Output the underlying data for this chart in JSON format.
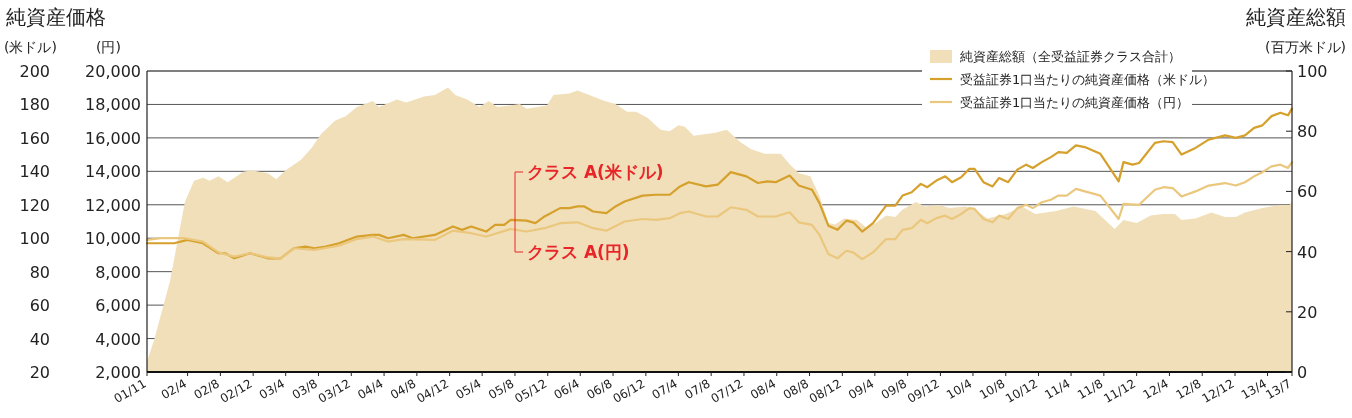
{
  "chart_data": {
    "type": "line",
    "title": "純資産価格",
    "subtitle": "純資産総額",
    "ylabel": "(米ドル)",
    "y3label": "(円)",
    "y2label": "(百万米ドル)",
    "xlim": [
      "2001-11",
      "2013-07"
    ],
    "xticks": [
      {
        "value": "2001-11",
        "label": "01/11"
      },
      {
        "value": "2002-04",
        "label": "02/4"
      },
      {
        "value": "2002-08",
        "label": "02/8"
      },
      {
        "value": "2002-12",
        "label": "02/12"
      },
      {
        "value": "2003-04",
        "label": "03/4"
      },
      {
        "value": "2003-08",
        "label": "03/8"
      },
      {
        "value": "2003-12",
        "label": "03/12"
      },
      {
        "value": "2004-04",
        "label": "04/4"
      },
      {
        "value": "2004-08",
        "label": "04/8"
      },
      {
        "value": "2004-12",
        "label": "04/12"
      },
      {
        "value": "2005-04",
        "label": "05/4"
      },
      {
        "value": "2005-08",
        "label": "05/8"
      },
      {
        "value": "2005-12",
        "label": "05/12"
      },
      {
        "value": "2006-04",
        "label": "06/4"
      },
      {
        "value": "2006-08",
        "label": "06/8"
      },
      {
        "value": "2006-12",
        "label": "06/12"
      },
      {
        "value": "2007-04",
        "label": "07/4"
      },
      {
        "value": "2007-08",
        "label": "07/8"
      },
      {
        "value": "2007-12",
        "label": "07/12"
      },
      {
        "value": "2008-04",
        "label": "08/4"
      },
      {
        "value": "2008-08",
        "label": "08/8"
      },
      {
        "value": "2008-12",
        "label": "08/12"
      },
      {
        "value": "2009-04",
        "label": "09/4"
      },
      {
        "value": "2009-08",
        "label": "09/8"
      },
      {
        "value": "2009-12",
        "label": "09/12"
      },
      {
        "value": "2010-04",
        "label": "10/4"
      },
      {
        "value": "2010-08",
        "label": "10/8"
      },
      {
        "value": "2010-12",
        "label": "10/12"
      },
      {
        "value": "2011-04",
        "label": "11/4"
      },
      {
        "value": "2011-08",
        "label": "11/8"
      },
      {
        "value": "2011-12",
        "label": "11/12"
      },
      {
        "value": "2012-04",
        "label": "12/4"
      },
      {
        "value": "2012-08",
        "label": "12/8"
      },
      {
        "value": "2012-12",
        "label": "12/12"
      },
      {
        "value": "2013-04",
        "label": "13/4"
      },
      {
        "value": "2013-07",
        "label": "13/7"
      }
    ],
    "ylim": [
      20,
      200
    ],
    "yticks": [
      20,
      40,
      60,
      80,
      100,
      120,
      140,
      160,
      180,
      200
    ],
    "y3lim": [
      2000,
      20000
    ],
    "y3ticks": [
      {
        "value": 2000,
        "label": "2,000"
      },
      {
        "value": 4000,
        "label": "4,000"
      },
      {
        "value": 6000,
        "label": "6,000"
      },
      {
        "value": 8000,
        "label": "8,000"
      },
      {
        "value": 10000,
        "label": "10,000"
      },
      {
        "value": 12000,
        "label": "12,000"
      },
      {
        "value": 14000,
        "label": "14,000"
      },
      {
        "value": 16000,
        "label": "16,000"
      },
      {
        "value": 18000,
        "label": "18,000"
      },
      {
        "value": 20000,
        "label": "20,000"
      }
    ],
    "y2lim": [
      0,
      100
    ],
    "y2ticks": [
      0,
      20,
      40,
      60,
      80,
      100
    ],
    "grid": "y",
    "legend": "top right",
    "series": [
      {
        "name": "純資産総額（全受益証券クラス合計）",
        "type": "area",
        "axis": "y2",
        "color": "#f1dfb9",
        "x": [
          "2001-11",
          "2001-11-28",
          "2002-01-25",
          "2002-02-28",
          "2002-03-22",
          "2002-04-25",
          "2002-05-28",
          "2002-06-22",
          "2002-07-25",
          "2002-08-28",
          "2002-09-22",
          "2002-10-25",
          "2002-11-28",
          "2003-01-25",
          "2003-02-25",
          "2003-04-01",
          "2003-05-28",
          "2003-07-07",
          "2003-08-10",
          "2003-10-01",
          "2003-11-10",
          "2003-12-22",
          "2004-02-19",
          "2004-03-13",
          "2004-05-19",
          "2004-06-22",
          "2004-08-28",
          "2004-10-07",
          "2004-11-25",
          "2004-12-22",
          "2005-02-04",
          "2005-03-22",
          "2005-04-25",
          "2005-05-28",
          "2005-08-19",
          "2005-09-13",
          "2005-11-28",
          "2005-12-22",
          "2006-02-19",
          "2006-03-22",
          "2006-05-04",
          "2006-07-01",
          "2006-08-10",
          "2006-09-22",
          "2006-10-25",
          "2006-12-07",
          "2007-01-25",
          "2007-02-28",
          "2007-04-01",
          "2007-04-25",
          "2007-05-28",
          "2007-08-16",
          "2007-09-28",
          "2007-11-16",
          "2007-12-28",
          "2008-02-16",
          "2008-04-16",
          "2008-05-19",
          "2008-06-22",
          "2008-08-04",
          "2008-09-07",
          "2008-10-10",
          "2008-11-04",
          "2008-12-07",
          "2009-01-25",
          "2009-02-28",
          "2009-04-04",
          "2009-05-13",
          "2009-06-16",
          "2009-07-13",
          "2009-09-01",
          "2009-10-04",
          "2009-11-25",
          "2010-01-04",
          "2010-03-04",
          "2010-04-07",
          "2010-05-25",
          "2010-08-01",
          "2010-10-01",
          "2010-11-19",
          "2011-02-04",
          "2011-04-10",
          "2011-07-01",
          "2011-09-10",
          "2011-10-13",
          "2011-12-01",
          "2012-01-22",
          "2012-03-10",
          "2012-04-22",
          "2012-05-16",
          "2012-07-07",
          "2012-09-04",
          "2012-10-25",
          "2012-12-04",
          "2013-01-07",
          "2013-03-13",
          "2013-05-19",
          "2013-06-22",
          "2013-07"
        ],
        "values": [
          3.5,
          10.8,
          30,
          46,
          56.5,
          63.5,
          64.5,
          63.5,
          65,
          63,
          64.5,
          66.5,
          67,
          66,
          64,
          67,
          70.5,
          74.5,
          79,
          83.5,
          85,
          88,
          90,
          88,
          90.5,
          89.5,
          91.5,
          92,
          94.5,
          92,
          90.5,
          88,
          90,
          88,
          89,
          87.5,
          88.5,
          92,
          92.5,
          93.5,
          92,
          90,
          89,
          86.5,
          86.5,
          84.5,
          80.5,
          80,
          82,
          81.5,
          78.5,
          79.5,
          80.5,
          76.5,
          74,
          72.5,
          72.5,
          69,
          66,
          65,
          58.5,
          49.5,
          49,
          51,
          50.5,
          48,
          49.5,
          52,
          51.5,
          54,
          56.5,
          55,
          55.5,
          54.5,
          55,
          54,
          51,
          52.5,
          55,
          52.5,
          53.5,
          55,
          53.5,
          47.5,
          50.5,
          49.5,
          52,
          52.5,
          52.5,
          50.5,
          51,
          53,
          51.5,
          51.5,
          53,
          54.5,
          55.5,
          55.5,
          57
        ]
      },
      {
        "name": "受益証券1口当たりの純資産価格（米ドル）",
        "type": "line",
        "axis": "y",
        "color": "#d5a02b",
        "x": [
          "2001-11",
          "2002-02-10",
          "2002-04",
          "2002-05-28",
          "2002-07-25",
          "2002-08-19",
          "2002-09-22",
          "2002-11-19",
          "2003-01-25",
          "2003-03-13",
          "2003-05",
          "2003-06-13",
          "2003-07-16",
          "2003-08-28",
          "2003-10-16",
          "2003-12-22",
          "2004-02-19",
          "2004-03-13",
          "2004-04-16",
          "2004-06-13",
          "2004-07-16",
          "2004-10-07",
          "2004-12-13",
          "2005-01-16",
          "2005-02-19",
          "2005-04-16",
          "2005-05-19",
          "2005-06-22",
          "2005-07-16",
          "2005-09-13",
          "2005-10-16",
          "2005-11-19",
          "2006-01-16",
          "2006-02-19",
          "2006-03-22",
          "2006-04-16",
          "2006-05-19",
          "2006-07-07",
          "2006-08-10",
          "2006-09-13",
          "2006-11-19",
          "2007-01-07",
          "2007-02-28",
          "2007-04-07",
          "2007-05-10",
          "2007-07-13",
          "2007-08-25",
          "2007-10-13",
          "2007-12-10",
          "2008-01-22",
          "2008-02-25",
          "2008-03-28",
          "2008-05-19",
          "2008-06-22",
          "2008-08-10",
          "2008-09-07",
          "2008-10-10",
          "2008-11-13",
          "2008-12-16",
          "2009-01-10",
          "2009-02-13",
          "2009-03-25",
          "2009-05-13",
          "2009-06-16",
          "2009-07-13",
          "2009-08-16",
          "2009-09-19",
          "2009-10-13",
          "2009-11-16",
          "2009-12-19",
          "2010-01-13",
          "2010-02-16",
          "2010-03-19",
          "2010-04-07",
          "2010-05-10",
          "2010-06-13",
          "2010-07-07",
          "2010-08-10",
          "2010-09-13",
          "2010-10-16",
          "2010-11-10",
          "2010-12-13",
          "2011-01-16",
          "2011-02-13",
          "2011-03-16",
          "2011-04-19",
          "2011-05-22",
          "2011-07-19",
          "2011-09-25",
          "2011-10-13",
          "2011-11-16",
          "2011-12-10",
          "2012-02-07",
          "2012-03-10",
          "2012-04-13",
          "2012-05-16",
          "2012-07-07",
          "2012-08-25",
          "2012-10-25",
          "2012-12-04",
          "2013-01-07",
          "2013-02-10",
          "2013-03-13",
          "2013-04-16",
          "2013-05-19",
          "2013-06-16",
          "2013-07"
        ],
        "values": [
          97,
          97,
          99,
          97,
          91,
          91,
          88,
          91,
          88,
          88,
          94,
          95,
          94,
          95,
          97,
          101,
          102,
          102,
          100,
          102,
          100,
          102,
          107,
          105,
          107,
          104,
          108,
          108,
          111,
          110.5,
          109,
          113,
          118,
          118,
          119,
          119,
          116,
          115,
          119,
          122,
          125.5,
          126,
          126,
          131,
          133.5,
          131,
          132,
          139.5,
          137,
          133,
          134,
          133.5,
          137.5,
          131.5,
          129,
          121,
          107.5,
          105,
          110.5,
          109.5,
          104,
          109,
          119.5,
          119.5,
          125.5,
          127.5,
          132.5,
          130.5,
          134.5,
          137,
          133.5,
          136.5,
          141.5,
          141.5,
          133.5,
          131,
          136,
          133.5,
          141,
          144,
          142,
          145.5,
          148.5,
          151.5,
          151,
          155.5,
          154.5,
          150.5,
          134,
          145.5,
          144,
          145,
          157,
          158,
          157.5,
          150,
          154,
          159,
          161.5,
          160,
          161.5,
          166,
          167.5,
          173,
          175,
          173.5,
          177.5
        ]
      },
      {
        "name": "受益証券1口当たりの純資産価格（円）",
        "type": "line",
        "axis": "y3",
        "color": "#eac77d",
        "x": [
          "2001-11",
          "2001-12-22",
          "2002-03-22",
          "2002-05-28",
          "2002-07-25",
          "2002-09-22",
          "2002-11-19",
          "2003-01-25",
          "2003-03-13",
          "2003-05-04",
          "2003-07-16",
          "2003-10-16",
          "2003-12-22",
          "2004-02-19",
          "2004-04-16",
          "2004-06-13",
          "2004-10-07",
          "2004-12-13",
          "2005-02-19",
          "2005-04-16",
          "2005-07-16",
          "2005-09-13",
          "2005-11-19",
          "2006-01-16",
          "2006-03-22",
          "2006-05-19",
          "2006-07-07",
          "2006-09-13",
          "2006-11-19",
          "2007-01-07",
          "2007-02-28",
          "2007-04-07",
          "2007-05-10",
          "2007-07-13",
          "2007-08-25",
          "2007-10-13",
          "2007-12-10",
          "2008-01-22",
          "2008-03-28",
          "2008-05-19",
          "2008-06-22",
          "2008-08-10",
          "2008-09-07",
          "2008-10-10",
          "2008-11-13",
          "2008-12-16",
          "2009-01-10",
          "2009-02-13",
          "2009-03-25",
          "2009-05-13",
          "2009-06-16",
          "2009-07-13",
          "2009-08-16",
          "2009-09-19",
          "2009-10-13",
          "2009-11-16",
          "2009-12-19",
          "2010-01-13",
          "2010-02-16",
          "2010-03-19",
          "2010-04-07",
          "2010-05-10",
          "2010-06-13",
          "2010-07-07",
          "2010-08-10",
          "2010-09-13",
          "2010-10-16",
          "2010-11-10",
          "2010-12-13",
          "2011-01-16",
          "2011-02-13",
          "2011-03-16",
          "2011-04-19",
          "2011-07-19",
          "2011-09-25",
          "2011-10-13",
          "2011-12-10",
          "2012-02-07",
          "2012-03-10",
          "2012-04-13",
          "2012-05-16",
          "2012-07-07",
          "2012-08-25",
          "2012-10-25",
          "2012-12-04",
          "2013-01-07",
          "2013-02-10",
          "2013-03-13",
          "2013-04-16",
          "2013-05-19",
          "2013-06-16",
          "2013-07"
        ],
        "values": [
          9900,
          10000,
          10000,
          9800,
          9150,
          8900,
          9100,
          8850,
          8800,
          9400,
          9300,
          9550,
          9950,
          10100,
          9800,
          9950,
          9900,
          10450,
          10300,
          10100,
          10550,
          10400,
          10600,
          10900,
          10950,
          10600,
          10450,
          11000,
          11150,
          11100,
          11200,
          11500,
          11600,
          11300,
          11300,
          11850,
          11700,
          11300,
          11300,
          11550,
          10950,
          10800,
          10200,
          9050,
          8800,
          9250,
          9150,
          8750,
          9150,
          9950,
          9950,
          10500,
          10600,
          11100,
          10900,
          11200,
          11350,
          11150,
          11450,
          11800,
          11750,
          11150,
          10950,
          11350,
          11150,
          11800,
          12000,
          11800,
          12150,
          12300,
          12550,
          12550,
          12950,
          12550,
          11150,
          12050,
          12000,
          12900,
          13050,
          13000,
          12500,
          12800,
          13150,
          13300,
          13150,
          13350,
          13700,
          13950,
          14300,
          14400,
          14200,
          14550
        ]
      }
    ],
    "annotations": [
      "クラス A(米ドル)",
      "クラス A(円)"
    ]
  }
}
